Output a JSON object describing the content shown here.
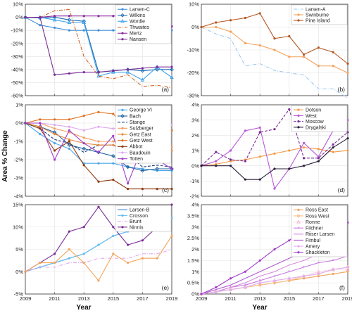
{
  "figure": {
    "ylabel": "Area % Change",
    "xlabel": "Year"
  },
  "chart_data": [
    {
      "type": "line",
      "panel_label": "(a)",
      "legend_position": "top-right",
      "x": [
        2009,
        2010,
        2011,
        2012,
        2013,
        2014,
        2015,
        2016,
        2017,
        2018,
        2019
      ],
      "ylim": [
        -60,
        10
      ],
      "yticks": [
        10,
        0,
        -10,
        -20,
        -30,
        -40,
        -50,
        -60
      ],
      "xticks": [
        2009,
        2011,
        2013,
        2015,
        2017,
        2019
      ],
      "show_xtick_labels": false,
      "series": [
        {
          "name": "Larsen-C",
          "color": "#3f8fd8",
          "dash": "",
          "marker": "dot",
          "values": [
            0,
            -6,
            -8,
            -10,
            -10,
            -10,
            -10,
            -10,
            -10,
            -10,
            -10
          ]
        },
        {
          "name": "Wilkins",
          "color": "#1e6fb8",
          "dash": "",
          "marker": "diamond",
          "values": [
            0,
            -0.5,
            0,
            -2,
            -3,
            -42,
            -41,
            -40,
            -41,
            -40,
            -40
          ]
        },
        {
          "name": "Wordie",
          "color": "#3fa2ea",
          "dash": "",
          "marker": "triangle",
          "values": [
            0,
            0,
            -2,
            -4,
            -4,
            -45,
            -42,
            -42,
            -48,
            -38,
            -46
          ]
        },
        {
          "name": "Thwaites",
          "color": "#d2611c",
          "dash": "dashdot",
          "marker": "none",
          "values": [
            0,
            0,
            5,
            6,
            -30,
            -45,
            -47,
            -44,
            -53,
            -52,
            -54
          ]
        },
        {
          "name": "Mertz",
          "color": "#8a2ba0",
          "dash": "",
          "marker": "dot",
          "values": [
            0,
            0,
            1,
            1,
            1,
            1,
            1,
            1,
            -6,
            -7,
            -7
          ]
        },
        {
          "name": "Nansen",
          "color": "#7b2d96",
          "dash": "",
          "marker": "dot",
          "values": [
            0,
            0,
            -44,
            -43,
            -42,
            -42,
            -41,
            -40,
            -39,
            -38,
            -38
          ]
        }
      ]
    },
    {
      "type": "line",
      "panel_label": "(b)",
      "legend_position": "top-right",
      "x": [
        2009,
        2010,
        2011,
        2012,
        2013,
        2014,
        2015,
        2016,
        2017,
        2018,
        2019
      ],
      "ylim": [
        -30,
        10
      ],
      "yticks": [
        10,
        0,
        -10,
        -20,
        -30
      ],
      "xticks": [
        2009,
        2011,
        2013,
        2015,
        2017,
        2019
      ],
      "show_xtick_labels": false,
      "series": [
        {
          "name": "Larsen-A",
          "color": "#9ec8f0",
          "dash": "dashdot",
          "marker": "none",
          "values": [
            0,
            -3,
            -5,
            -17,
            -16,
            -19,
            -20,
            -21,
            -27,
            -27,
            -31
          ]
        },
        {
          "name": "Swinburne",
          "color": "#f4a15a",
          "dash": "",
          "marker": "dot",
          "values": [
            0,
            0,
            -2,
            -7,
            -8,
            -10,
            -13,
            -13,
            -17,
            -17,
            -20
          ]
        },
        {
          "name": "Pine Island",
          "color": "#b4561e",
          "dash": "",
          "marker": "dot",
          "values": [
            0,
            2,
            3,
            4,
            6,
            -5,
            -4,
            -12,
            -9,
            -11,
            -16
          ]
        }
      ]
    },
    {
      "type": "line",
      "panel_label": "(c)",
      "legend_position": "top-right",
      "x": [
        2009,
        2010,
        2011,
        2012,
        2013,
        2014,
        2015,
        2016,
        2017,
        2018,
        2019
      ],
      "ylim": [
        -4,
        1
      ],
      "yticks": [
        1,
        0,
        -1,
        -2,
        -3,
        -4
      ],
      "xticks": [
        2009,
        2011,
        2013,
        2015,
        2017,
        2019
      ],
      "show_xtick_labels": false,
      "series": [
        {
          "name": "George VI",
          "color": "#4aa6e8",
          "dash": "",
          "marker": "dot",
          "values": [
            0,
            -0.6,
            -1.1,
            -1.4,
            -2.2,
            -2.2,
            -2.2,
            -2.4,
            -2.5,
            -2.6,
            -2.6
          ]
        },
        {
          "name": "Bach",
          "color": "#1e5f9e",
          "dash": "",
          "marker": "diamond",
          "values": [
            0,
            -0.2,
            -0.5,
            -1.2,
            -1.4,
            -1.6,
            -1.8,
            -2.4,
            -2.6,
            -2.5,
            -2.5
          ]
        },
        {
          "name": "Stange",
          "color": "#1f3f7a",
          "dash": "dash",
          "marker": "none",
          "values": [
            0,
            -0.3,
            -0.9,
            -1.1,
            -1.6,
            -1.2,
            -1.2,
            -1.7,
            -2.4,
            -2.3,
            -2.4
          ]
        },
        {
          "name": "Sulzberger",
          "color": "#f0a060",
          "dash": "",
          "marker": "dot",
          "values": [
            0,
            0,
            -0.3,
            -0.5,
            -0.8,
            -1.0,
            -1.0,
            -1.2,
            -1.2,
            -1.3,
            -1.3
          ]
        },
        {
          "name": "Getz East",
          "color": "#e88a3a",
          "dash": "",
          "marker": "dot",
          "values": [
            0,
            -0.2,
            -0.6,
            -0.9,
            -1.1,
            -1.2,
            -1.2,
            -1.4,
            -1.3,
            -1.5,
            -1.5
          ]
        },
        {
          "name": "Getz West",
          "color": "#e0701a",
          "dash": "",
          "marker": "dot",
          "values": [
            0,
            0.2,
            0.2,
            0.2,
            0.4,
            0.6,
            0.5,
            -0.4,
            -0.4,
            -0.6,
            -0.4
          ]
        },
        {
          "name": "Abbot",
          "color": "#8e3a0f",
          "dash": "",
          "marker": "dot",
          "values": [
            0,
            -0.3,
            -1.5,
            -1.0,
            -2.3,
            -3.2,
            -3.1,
            -3.6,
            -3.6,
            -3.6,
            -3.6
          ]
        },
        {
          "name": "Baudouin",
          "color": "#e0a8f0",
          "dash": "",
          "marker": "dot",
          "values": [
            0,
            0,
            -0.1,
            -0.2,
            -0.4,
            -0.2,
            -0.3,
            -0.3,
            -0.3,
            -0.2,
            -0.1
          ]
        },
        {
          "name": "Totten",
          "color": "#a33fc8",
          "dash": "",
          "marker": "dot",
          "values": [
            0,
            0,
            -2.0,
            -0.4,
            -1.1,
            -1.6,
            -0.7,
            -3.3,
            -1.3,
            -2.0,
            -2.5
          ]
        }
      ]
    },
    {
      "type": "line",
      "panel_label": "(d)",
      "legend_position": "top-left",
      "x": [
        2009,
        2010,
        2011,
        2012,
        2013,
        2014,
        2015,
        2016,
        2017,
        2018,
        2019
      ],
      "ylim": [
        -2,
        4
      ],
      "yticks": [
        4,
        3,
        2,
        1,
        0,
        -1,
        -2
      ],
      "xticks": [
        2009,
        2011,
        2013,
        2015,
        2017,
        2019
      ],
      "show_xtick_labels": false,
      "series": [
        {
          "name": "Dotson",
          "color": "#f49a48",
          "dash": "",
          "marker": "dot",
          "values": [
            0,
            0.1,
            0.3,
            0.4,
            0.6,
            0.8,
            1.0,
            1.2,
            1.1,
            0.9,
            1.0
          ]
        },
        {
          "name": "West",
          "color": "#b85ad8",
          "dash": "",
          "marker": "dot",
          "values": [
            0,
            0.3,
            1.0,
            2.3,
            2.5,
            -1.5,
            -0.2,
            1.5,
            0.6,
            2.3,
            3.0
          ]
        },
        {
          "name": "Moscow",
          "color": "#7a2d96",
          "dash": "dash",
          "marker": "dot",
          "values": [
            0,
            0.9,
            0.4,
            0.3,
            2.2,
            2.4,
            3.7,
            0.5,
            0.5,
            1.4,
            2.2
          ]
        },
        {
          "name": "Drygalski",
          "color": "#2a1f3a",
          "dash": "",
          "marker": "dot",
          "values": [
            0,
            0,
            0,
            -0.9,
            -0.9,
            -0.2,
            -0.2,
            0,
            0.3,
            1.2,
            1.8
          ]
        }
      ]
    },
    {
      "type": "line",
      "panel_label": "(e)",
      "legend_position": "top-left",
      "x": [
        2009,
        2010,
        2011,
        2012,
        2013,
        2014,
        2015,
        2016,
        2017,
        2018,
        2019
      ],
      "xlim": [
        2009,
        2019
      ],
      "ylim": [
        -5,
        15
      ],
      "yticks": [
        15,
        10,
        5,
        0,
        -5
      ],
      "xticks": [
        2009,
        2011,
        2013,
        2015,
        2017,
        2019
      ],
      "show_xtick_labels": true,
      "series": [
        {
          "name": "Larsen-B",
          "color": "#3a88e0",
          "dash": "",
          "marker": "none",
          "values": [
            0,
            1,
            2,
            3,
            4,
            6,
            8,
            9,
            10,
            11,
            12
          ]
        },
        {
          "name": "Crosson",
          "color": "#66bdf0",
          "dash": "",
          "marker": "dot",
          "values": [
            0,
            1,
            2,
            3,
            4,
            6,
            8,
            9,
            10,
            11,
            12
          ]
        },
        {
          "name": "Brunt",
          "color": "#e0a8f0",
          "dash": "dashdot",
          "marker": "none",
          "values": [
            0,
            1,
            1,
            2,
            2,
            3,
            3,
            3,
            4,
            4,
            5
          ]
        },
        {
          "name": "Ninnis",
          "color": "#7a2d96",
          "dash": "",
          "marker": "dot",
          "values": [
            0,
            2,
            4,
            9,
            10,
            14.5,
            10,
            6,
            7,
            10,
            15
          ]
        },
        {
          "name": "",
          "color": "#f4a45a",
          "dash": "",
          "marker": "dot",
          "values": [
            0,
            2,
            2,
            5,
            2,
            -2,
            4,
            2,
            3,
            3,
            8
          ]
        }
      ]
    },
    {
      "type": "line",
      "panel_label": "(f)",
      "legend_position": "top-left",
      "x": [
        2009,
        2010,
        2011,
        2012,
        2013,
        2014,
        2015,
        2016,
        2017,
        2018,
        2019
      ],
      "xlim": [
        2009,
        2019
      ],
      "ylim": [
        0,
        4
      ],
      "yticks": [
        4,
        3.5,
        3,
        2.5,
        2,
        1.5,
        1,
        0.5,
        0
      ],
      "xticks": [
        2009,
        2011,
        2013,
        2015,
        2017,
        2019
      ],
      "show_xtick_labels": true,
      "series": [
        {
          "name": "Ross East",
          "color": "#f0a25a",
          "dash": "",
          "marker": "dot",
          "values": [
            0,
            0.1,
            0.2,
            0.3,
            0.4,
            0.5,
            0.6,
            0.7,
            0.8,
            0.9,
            1.0
          ]
        },
        {
          "name": "Ross West",
          "color": "#f4c08a",
          "dash": "",
          "marker": "diamond",
          "values": [
            0,
            0.1,
            0.2,
            0.3,
            0.4,
            0.5,
            0.6,
            0.8,
            0.9,
            1.1,
            1.2
          ]
        },
        {
          "name": "Ronne",
          "color": "#f4b8d8",
          "dash": "dot",
          "marker": "triangle",
          "values": [
            0,
            0.1,
            0.2,
            0.3,
            0.5,
            0.6,
            0.7,
            0.8,
            1.0,
            1.1,
            1.1
          ]
        },
        {
          "name": "Filchner",
          "color": "#c87ae0",
          "dash": "",
          "marker": "star",
          "values": [
            0,
            0.1,
            0.3,
            0.4,
            0.6,
            0.8,
            1.0,
            1.2,
            1.4,
            1.5,
            1.7
          ]
        },
        {
          "name": "Riiser Larsen",
          "color": "#d98ad8",
          "dash": "",
          "marker": "none",
          "values": [
            0,
            0.1,
            0.3,
            0.5,
            0.8,
            1.0,
            1.3,
            1.5,
            1.8,
            2.0,
            2.2
          ]
        },
        {
          "name": "Fimbul",
          "color": "#b05ad0",
          "dash": "",
          "marker": "none",
          "values": [
            0,
            0.2,
            0.4,
            0.7,
            1.0,
            1.3,
            1.6,
            1.9,
            2.1,
            2.3,
            2.5
          ]
        },
        {
          "name": "Amery",
          "color": "#e0b0f0",
          "dash": "",
          "marker": "dot",
          "values": [
            0,
            0.1,
            0.2,
            0.3,
            0.5,
            0.6,
            0.7,
            0.8,
            0.9,
            1.1,
            1.2
          ]
        },
        {
          "name": "Shackleton",
          "color": "#a13ec9",
          "dash": "",
          "marker": "dot",
          "values": [
            0,
            0.3,
            0.7,
            1.0,
            1.5,
            2.0,
            2.4,
            2.9,
            3.1,
            3.1,
            3.2
          ]
        }
      ]
    }
  ]
}
